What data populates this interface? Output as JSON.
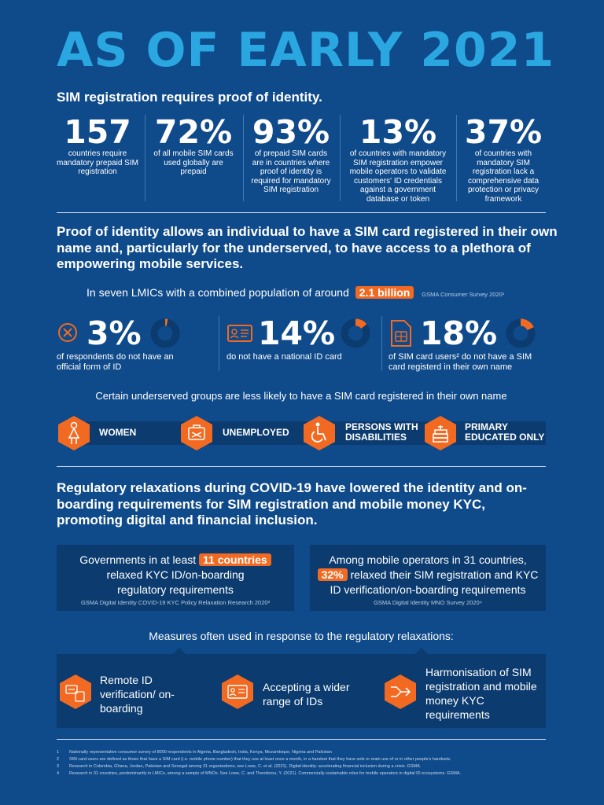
{
  "title": "AS OF EARLY 2021",
  "subtitle": "SIM registration requires proof of identity.",
  "stats": [
    {
      "value": "157",
      "desc": "countries require mandatory prepaid SIM registration"
    },
    {
      "value": "72%",
      "desc": "of all mobile SIM cards used globally are prepaid"
    },
    {
      "value": "93%",
      "desc": "of prepaid SIM cards are in countries where proof of identity is required for mandatory SIM registration"
    },
    {
      "value": "13%",
      "desc": "of countries with mandatory SIM registration empower mobile operators to validate customers' ID credentials against a government database or token"
    },
    {
      "value": "37%",
      "desc": "of countries with mandatory SIM registration lack a comprehensive data protection or privacy framework"
    }
  ],
  "lead1": "Proof of identity allows an individual to have a SIM card registered in their own name and, particularly for the underserved, to have access to a plethora of empowering mobile services.",
  "population": {
    "prefix": "In seven LMICs with a combined population of around",
    "highlight": "2.1 billion",
    "source": "GSMA Consumer Survey 2020¹"
  },
  "percents": [
    {
      "value": "3%",
      "fraction": 0.03,
      "desc": "of respondents do not have an official form of ID",
      "icon": "x-circle-icon"
    },
    {
      "value": "14%",
      "fraction": 0.14,
      "desc": "do not have a national ID card",
      "icon": "id-card-icon"
    },
    {
      "value": "18%",
      "fraction": 0.18,
      "desc": "of SIM card users² do not have a SIM card registerd in their own name",
      "icon": "sim-card-icon"
    }
  ],
  "groups_heading": "Certain underserved groups are less likely to have a SIM card registered in their own name",
  "groups": [
    {
      "label": "WOMEN",
      "icon": "woman-icon"
    },
    {
      "label": "UNEMPLOYED",
      "icon": "briefcase-icon"
    },
    {
      "label": "PERSONS WITH DISABILITIES",
      "icon": "wheelchair-icon"
    },
    {
      "label": "PRIMARY EDUCATED ONLY",
      "icon": "books-icon"
    }
  ],
  "lead2": "Regulatory relaxations during COVID-19 have lowered the identity and on-boarding requirements for SIM registration and mobile money KYC, promoting digital and financial inclusion.",
  "box1": {
    "prefix": "Governments in at least",
    "highlight": "11 countries",
    "suffix": "relaxed KYC ID/on-boarding regulatory requirements",
    "source": "GSMA Digital Identity COVID-19 KYC Policy Relaxation Research 2020³"
  },
  "box2": {
    "prefix": "Among mobile operators in 31 countries,",
    "highlight": "32%",
    "suffix": "relaxed their SIM registration and KYC ID verification/on-boarding requirements",
    "source": "GSMA Digital Identity MNO Survey 2020⁴"
  },
  "measures_heading": "Measures often used in response to the regulatory relaxations:",
  "measures": [
    {
      "label": "Remote ID verification/ on-boarding",
      "icon": "remote-verification-icon"
    },
    {
      "label": "Accepting a wider range of IDs",
      "icon": "id-range-icon"
    },
    {
      "label": "Harmonisation of SIM registration and mobile money KYC requirements",
      "icon": "merge-arrows-icon"
    }
  ],
  "footnotes": [
    {
      "n": "1",
      "text": "Nationally representative consumer survey of 8000 respondents in Algeria, Bangladesh, India, Kenya, Mozambique, Nigeria and Pakistan"
    },
    {
      "n": "2",
      "text": "SIM card users are defined as those that have a SIM card (i.e. mobile phone number) that they use at least once a month, in a handset that they have sole or main use of or in other people's handsets."
    },
    {
      "n": "3",
      "text": "Research in Colombia, Ghana, Jordan, Pakistan and Senegal among 31 organisations, see Lowe, C. et al. (2021). Digital identity: accelerating financial inclusion during a crisis. GSMA."
    },
    {
      "n": "4",
      "text": "Research in 31 countries, predominantly in LMICs, among a sample of MNOs. See Lowe, C. and Theodorou, Y. (2021). Commercially sustainable roles for mobile operators in digital ID ecosystems. GSMA."
    }
  ],
  "colors": {
    "background": "#0f4a8a",
    "title": "#2aa7e0",
    "accent": "#f26a21",
    "panel": "#0b3b6f"
  }
}
